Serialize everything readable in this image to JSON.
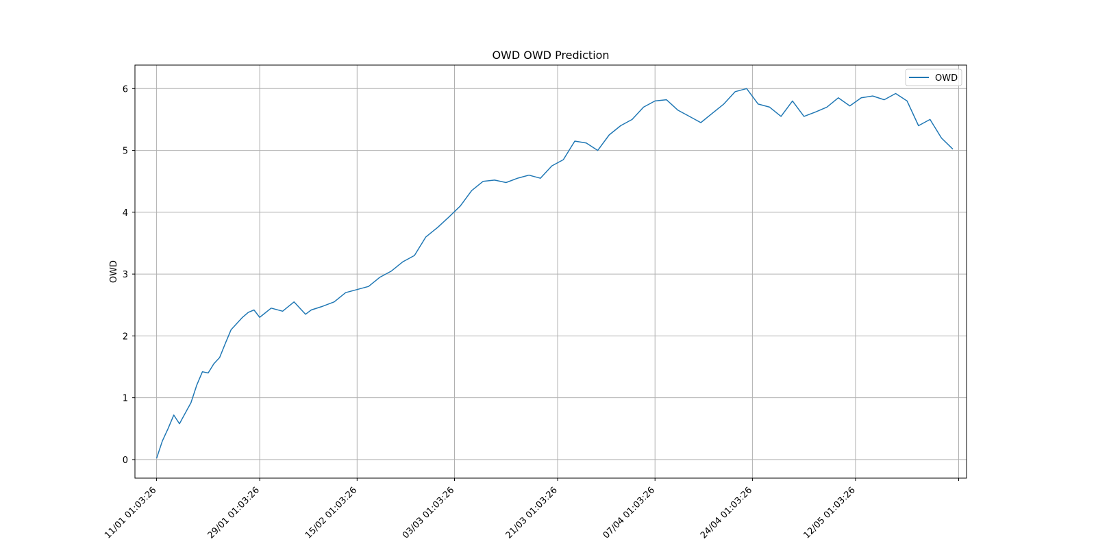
{
  "chart_data": {
    "type": "line",
    "title": "OWD OWD Prediction",
    "xlabel": "",
    "ylabel": "OWD",
    "ylim": [
      -0.3,
      6.38
    ],
    "xlim": [
      "2024-01-07 06:23:26",
      "2024-05-31 10:07:26"
    ],
    "grid": true,
    "legend": {
      "position": "top-right",
      "entries": [
        "OWD"
      ]
    },
    "colors": {
      "series": "#1f77b4",
      "grid": "#b0b0b0",
      "axes": "#000000"
    },
    "x_tick_labels": [
      "11/01 01:03:26",
      "29/01 01:03:26",
      "15/02 01:03:26",
      "03/03 01:03:26",
      "21/03 01:03:26",
      "07/04 01:03:26",
      "24/04 01:03:26",
      "12/05 01:03:26",
      ""
    ],
    "x_ticks": [
      "2024-01-11 01:03:26",
      "2024-01-29 01:03:26",
      "2024-02-15 01:03:26",
      "2024-03-03 01:03:26",
      "2024-03-21 01:03:26",
      "2024-04-07 01:03:26",
      "2024-04-24 01:03:26",
      "2024-05-12 01:03:26",
      "2024-05-30 01:03:26"
    ],
    "y_ticks": [
      0,
      1,
      2,
      3,
      4,
      5,
      6
    ],
    "y_tick_labels": [
      "0",
      "1",
      "2",
      "3",
      "4",
      "5",
      "6"
    ],
    "series": [
      {
        "name": "OWD",
        "x": [
          "2024-01-11 01:03:26",
          "2024-01-12 01:03:26",
          "2024-01-13 01:03:26",
          "2024-01-14 01:03:26",
          "2024-01-15 01:03:26",
          "2024-01-16 01:03:26",
          "2024-01-17 01:03:26",
          "2024-01-18 01:03:26",
          "2024-01-19 01:03:26",
          "2024-01-20 01:03:26",
          "2024-01-21 01:03:26",
          "2024-01-22 01:03:26",
          "2024-01-23 01:03:26",
          "2024-01-24 01:03:26",
          "2024-01-25 01:03:26",
          "2024-01-26 01:03:26",
          "2024-01-27 01:03:26",
          "2024-01-28 01:03:26",
          "2024-01-29 01:03:26",
          "2024-01-31 01:03:26",
          "2024-02-02 01:03:26",
          "2024-02-04 01:03:26",
          "2024-02-06 01:03:26",
          "2024-02-07 01:03:26",
          "2024-02-09 01:03:26",
          "2024-02-11 01:03:26",
          "2024-02-13 01:03:26",
          "2024-02-15 01:03:26",
          "2024-02-17 01:03:26",
          "2024-02-19 01:03:26",
          "2024-02-21 01:03:26",
          "2024-02-23 01:03:26",
          "2024-02-25 01:03:26",
          "2024-02-27 01:03:26",
          "2024-02-29 01:03:26",
          "2024-03-02 01:03:26",
          "2024-03-04 01:03:26",
          "2024-03-06 01:03:26",
          "2024-03-08 01:03:26",
          "2024-03-10 01:03:26",
          "2024-03-12 01:03:26",
          "2024-03-14 01:03:26",
          "2024-03-16 01:03:26",
          "2024-03-18 01:03:26",
          "2024-03-20 01:03:26",
          "2024-03-22 01:03:26",
          "2024-03-24 01:03:26",
          "2024-03-26 01:03:26",
          "2024-03-28 01:03:26",
          "2024-03-30 01:03:26",
          "2024-04-01 01:03:26",
          "2024-04-03 01:03:26",
          "2024-04-05 01:03:26",
          "2024-04-07 01:03:26",
          "2024-04-09 01:03:26",
          "2024-04-11 01:03:26",
          "2024-04-13 01:03:26",
          "2024-04-15 01:03:26",
          "2024-04-17 01:03:26",
          "2024-04-19 01:03:26",
          "2024-04-21 01:03:26",
          "2024-04-23 01:03:26",
          "2024-04-25 01:03:26",
          "2024-04-27 01:03:26",
          "2024-04-29 01:03:26",
          "2024-05-01 01:03:26",
          "2024-05-03 01:03:26",
          "2024-05-05 01:03:26",
          "2024-05-07 01:03:26",
          "2024-05-09 01:03:26",
          "2024-05-11 01:03:26",
          "2024-05-13 01:03:26",
          "2024-05-15 01:03:26",
          "2024-05-17 01:03:26",
          "2024-05-19 01:03:26",
          "2024-05-21 01:03:26",
          "2024-05-23 01:03:26",
          "2024-05-25 01:03:26",
          "2024-05-27 01:03:26",
          "2024-05-29 01:03:26"
        ],
        "y": [
          0.02,
          0.3,
          0.5,
          0.72,
          0.58,
          0.75,
          0.92,
          1.2,
          1.42,
          1.4,
          1.55,
          1.65,
          1.88,
          2.1,
          2.2,
          2.3,
          2.38,
          2.42,
          2.3,
          2.45,
          2.4,
          2.55,
          2.35,
          2.42,
          2.48,
          2.55,
          2.7,
          2.75,
          2.8,
          2.95,
          3.05,
          3.2,
          3.3,
          3.6,
          3.75,
          3.92,
          4.1,
          4.35,
          4.5,
          4.52,
          4.48,
          4.55,
          4.6,
          4.55,
          4.75,
          4.85,
          5.15,
          5.12,
          5.0,
          5.25,
          5.4,
          5.5,
          5.7,
          5.8,
          5.82,
          5.65,
          5.55,
          5.45,
          5.6,
          5.75,
          5.95,
          6.0,
          5.75,
          5.7,
          5.55,
          5.8,
          5.55,
          5.62,
          5.7,
          5.85,
          5.72,
          5.85,
          5.88,
          5.82,
          5.92,
          5.8,
          5.4,
          5.5,
          5.2,
          5.02
        ]
      }
    ]
  }
}
